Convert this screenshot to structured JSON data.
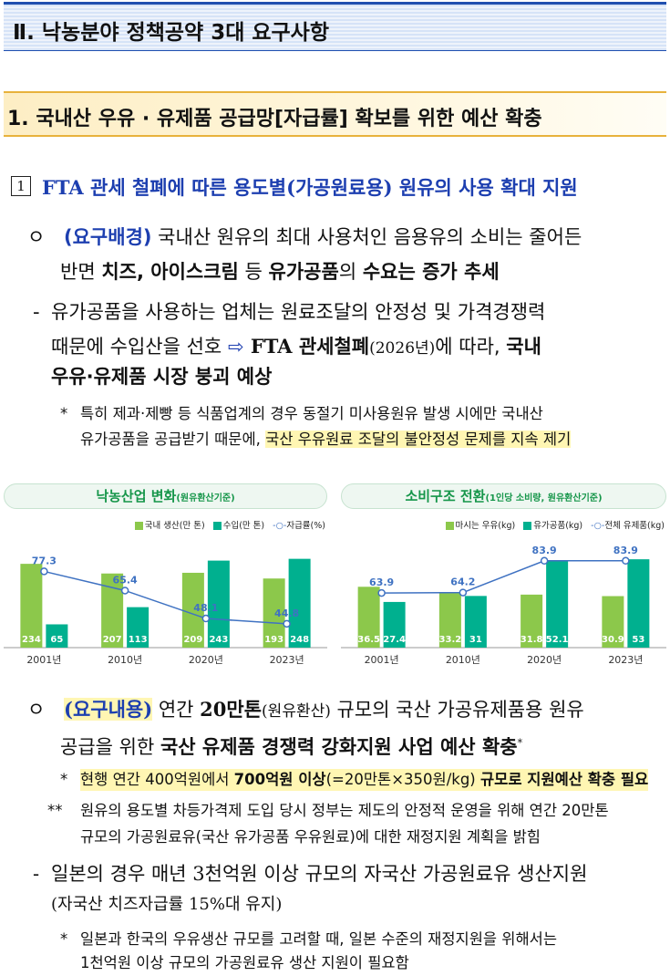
{
  "section_title": "Ⅱ. 낙농분야 정책공약 3대 요구사항",
  "subsection_title": "1. 국내산 우유 · 유제품 공급망[자급률] 확보를 위한 예산 확충",
  "item1": {
    "number": "1",
    "fta": "FTA",
    "rest": " 관세 철폐에 따른 용도별(가공원료용) 원유의 사용 확대 지원"
  },
  "bg": {
    "bullet": "ㅇ",
    "label": "(요구배경)",
    "l1": " 국내산 원유의 최대 사용처인 음용유의 소비는 줄어든",
    "l2a": "반면 ",
    "l2b": "치즈, 아이스크림",
    "l2c": " 등 ",
    "l2d": "유가공품",
    "l2e": "의 ",
    "l2f": "수요는 증가 추세"
  },
  "dash1": {
    "mark": "-",
    "l1": "유가공품을 사용하는 업체는 원료조달의 안정성 및 가격경쟁력",
    "l2a": "때문에 수입산을 선호 ",
    "arrow": "⇨",
    "l2b": " FTA 관세철폐",
    "l2c": "(2026년)",
    "l2d": "에 따라, ",
    "l2e": "국내",
    "l3": "우유·유제품 시장 붕괴 예상"
  },
  "note1": {
    "mark": "*",
    "l1": "특히 제과·제빵 등 식품업계의 경우 동절기 미사용원유 발생 시에만 국내산",
    "l2a": "유가공품을 공급받기 때문에, ",
    "l2b": "국산 우유원료 조달",
    "l2c": "의 ",
    "l2d": "불안정성 문제",
    "l2e": "를 ",
    "l2f": "지속 제기"
  },
  "req": {
    "bullet": "ㅇ",
    "label": "(요구내용)",
    "l1a": " 연간 ",
    "l1b": "20만톤",
    "l1c": "(원유환산)",
    "l1d": " 규모의 국산 가공유제품용 원유",
    "l2a": "공급을 위한 ",
    "l2b": "국산 유제품 경쟁력 강화지원 사업 예산 확충",
    "l2c": "*"
  },
  "note2": {
    "mark": "*",
    "l1a": "현행 연간 400억원에서 ",
    "l1b": "700억원 이상",
    "l1c": "(=20만톤×350원/kg) ",
    "l1d": "규모로 지원예산 확충 필요"
  },
  "note3": {
    "mark": "**",
    "l1": "원유의 용도별 차등가격제 도입 당시 정부는 제도의 안정적 운영을 위해 연간 20만톤",
    "l2": "규모의 가공원료유(국산 유가공품 우유원료)에 대한 재정지원 계획을 밝힘"
  },
  "dash2": {
    "mark": "-",
    "l1": "일본의 경우 매년 3천억원 이상 규모의 자국산 가공원료유 생산지원",
    "l2": "(자국산 치즈자급률 15%대 유지)"
  },
  "note4": {
    "mark": "*",
    "l1": "일본과 한국의 우유생산 규모를 고려할 때, 일본 수준의 재정지원을 위해서는",
    "l2": "1천억원 이상 규모의 가공원료유 생산 지원이 필요함"
  },
  "colors": {
    "green_bar": "#8cc84b",
    "teal_bar": "#00b08f",
    "line": "#3f72c2",
    "title_green": "#16964a"
  },
  "chart_data": [
    {
      "type": "bar",
      "title": "낙농산업 변화",
      "subtitle": "(원유환산기준)",
      "categories": [
        "2001년",
        "2010년",
        "2020년",
        "2023년"
      ],
      "series": [
        {
          "name": "국내 생산(만 톤)",
          "kind": "bar",
          "color": "#8cc84b",
          "values": [
            234,
            207,
            209,
            193
          ]
        },
        {
          "name": "수입(만 톤)",
          "kind": "bar",
          "color": "#00b08f",
          "values": [
            65,
            113,
            243,
            248
          ]
        },
        {
          "name": "자급률(%)",
          "kind": "line",
          "color": "#3f72c2",
          "values": [
            77.3,
            65.4,
            48.1,
            44.8
          ]
        }
      ],
      "bar_ylim": [
        0,
        270
      ],
      "line_ylim": [
        30,
        90
      ],
      "legend": "top-right"
    },
    {
      "type": "bar",
      "title": "소비구조 전환",
      "subtitle": "(1인당 소비량, 원유환산기준)",
      "categories": [
        "2001년",
        "2010년",
        "2020년",
        "2023년"
      ],
      "series": [
        {
          "name": "마시는 우유(kg)",
          "kind": "bar",
          "color": "#8cc84b",
          "values": [
            36.5,
            33.2,
            31.8,
            30.9
          ]
        },
        {
          "name": "유가공품(kg)",
          "kind": "bar",
          "color": "#00b08f",
          "values": [
            27.4,
            31,
            52.1,
            53
          ]
        },
        {
          "name": "전체 유제품(kg)",
          "kind": "line",
          "color": "#3f72c2",
          "values": [
            63.9,
            64.2,
            83.9,
            83.9
          ]
        }
      ],
      "bar_ylim": [
        0,
        58
      ],
      "line_ylim": [
        30,
        90
      ],
      "legend": "top-right"
    }
  ]
}
